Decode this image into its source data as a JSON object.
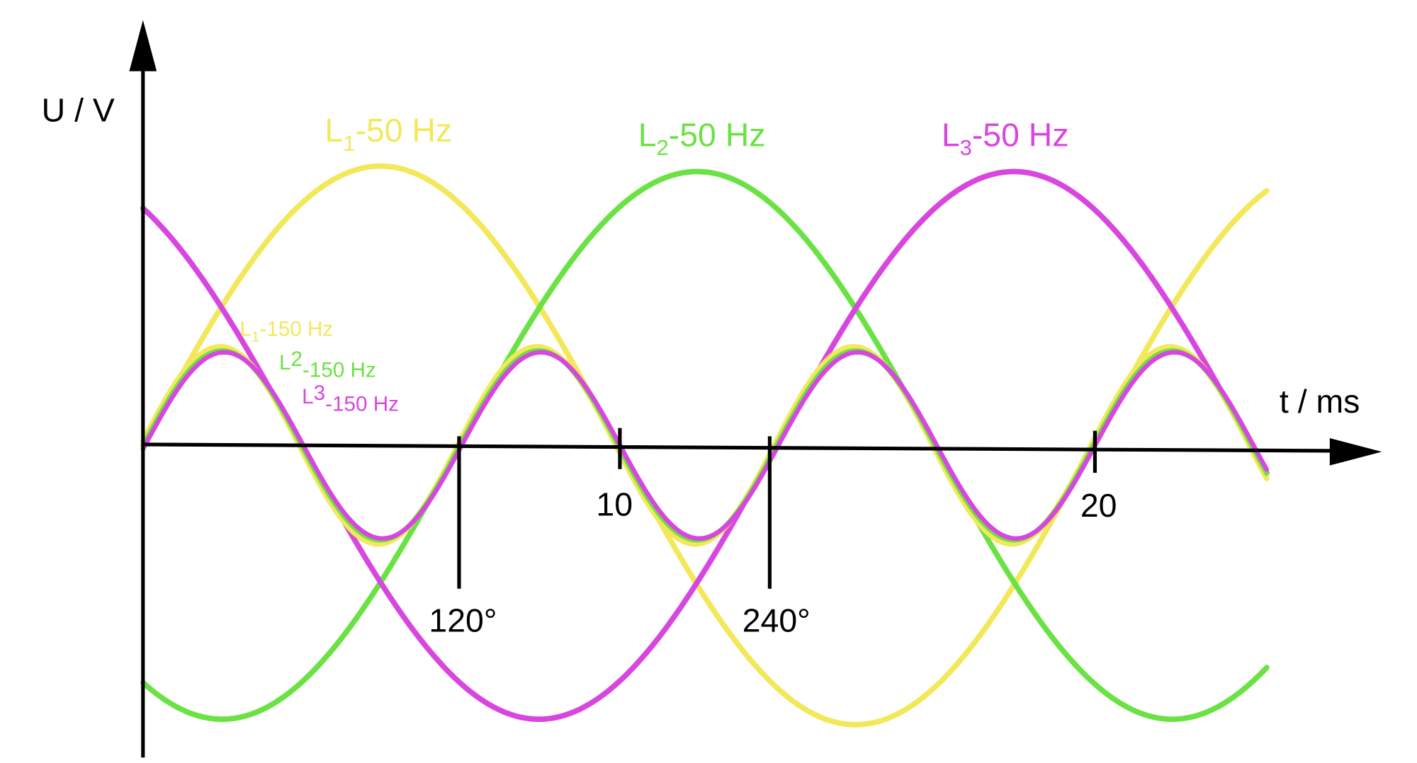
{
  "axes": {
    "y_label": "U / V",
    "x_label": "t / ms"
  },
  "curve_labels": [
    {
      "letter": "L",
      "index": "1",
      "suffix": "-50 Hz"
    },
    {
      "letter": "L",
      "index": "2",
      "suffix": "-50 Hz"
    },
    {
      "letter": "L",
      "index": "3",
      "suffix": "-50 Hz"
    }
  ],
  "harmonic_labels": [
    {
      "letter": "L",
      "index": "1",
      "suffix": "-150 Hz"
    },
    {
      "letter": "L",
      "index": "2",
      "suffix": "-150 Hz"
    },
    {
      "letter": "L",
      "index": "3",
      "suffix": "-150 Hz"
    }
  ],
  "time_ticks": [
    "10",
    "20"
  ],
  "angle_marks": [
    "120°",
    "240°"
  ]
}
